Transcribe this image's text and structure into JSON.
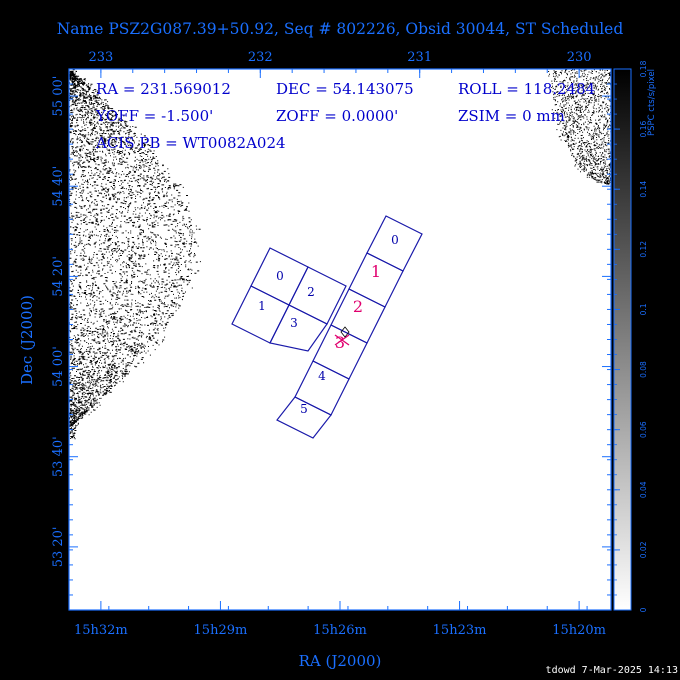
{
  "title": "Name PSZ2G087.39+50.92, Seq # 802226, Obsid 30044, ST Scheduled",
  "info": {
    "ra": "RA = 231.569012",
    "dec": "DEC = 54.143075",
    "roll": "ROLL = 118.2484",
    "yoff": "YOFF = -1.500'",
    "zoff": "ZOFF =  0.0000'",
    "zsim": "ZSIM = 0 mm",
    "acis_pb": "ACIS PB = WT0082A024"
  },
  "axes": {
    "xlabel": "RA (J2000)",
    "ylabel": "Dec (J2000)",
    "bottom_ticks": [
      {
        "deg": 233.0,
        "label": "15h32m"
      },
      {
        "deg": 232.25,
        "label": "15h29m"
      },
      {
        "deg": 231.5,
        "label": "15h26m"
      },
      {
        "deg": 230.75,
        "label": "15h23m"
      },
      {
        "deg": 230.0,
        "label": "15h20m"
      }
    ],
    "top_ticks": [
      {
        "deg": 233,
        "label": "233"
      },
      {
        "deg": 232,
        "label": "232"
      },
      {
        "deg": 231,
        "label": "231"
      },
      {
        "deg": 230,
        "label": "230"
      }
    ],
    "left_ticks": [
      {
        "deg": 55.0,
        "label": "55 00'"
      },
      {
        "deg": 54.6667,
        "label": "54 40'"
      },
      {
        "deg": 54.3333,
        "label": "54 20'"
      },
      {
        "deg": 54.0,
        "label": "54 00'"
      },
      {
        "deg": 53.6667,
        "label": "53 40'"
      },
      {
        "deg": 53.3333,
        "label": "53 20'"
      }
    ],
    "ra_range": [
      233.2,
      229.8
    ],
    "dec_range": [
      53.1,
      55.1
    ]
  },
  "colorbar": {
    "label": "PSPC cts/s/pixel",
    "ticks": [
      "0",
      "0.02",
      "0.04",
      "0.06",
      "0.08",
      "0.1",
      "0.12",
      "0.14",
      "0.16",
      "0.18"
    ]
  },
  "ccd_i": [
    "0",
    "1",
    "2",
    "3"
  ],
  "ccd_s": [
    "0",
    "1",
    "2",
    "3",
    "4",
    "5"
  ],
  "footer": "tdowd  7-Mar-2025 14:13",
  "colors": {
    "frame": "#1a6fff",
    "text": "#0000cc",
    "highlight": "#ff0080",
    "background": "#000000"
  }
}
